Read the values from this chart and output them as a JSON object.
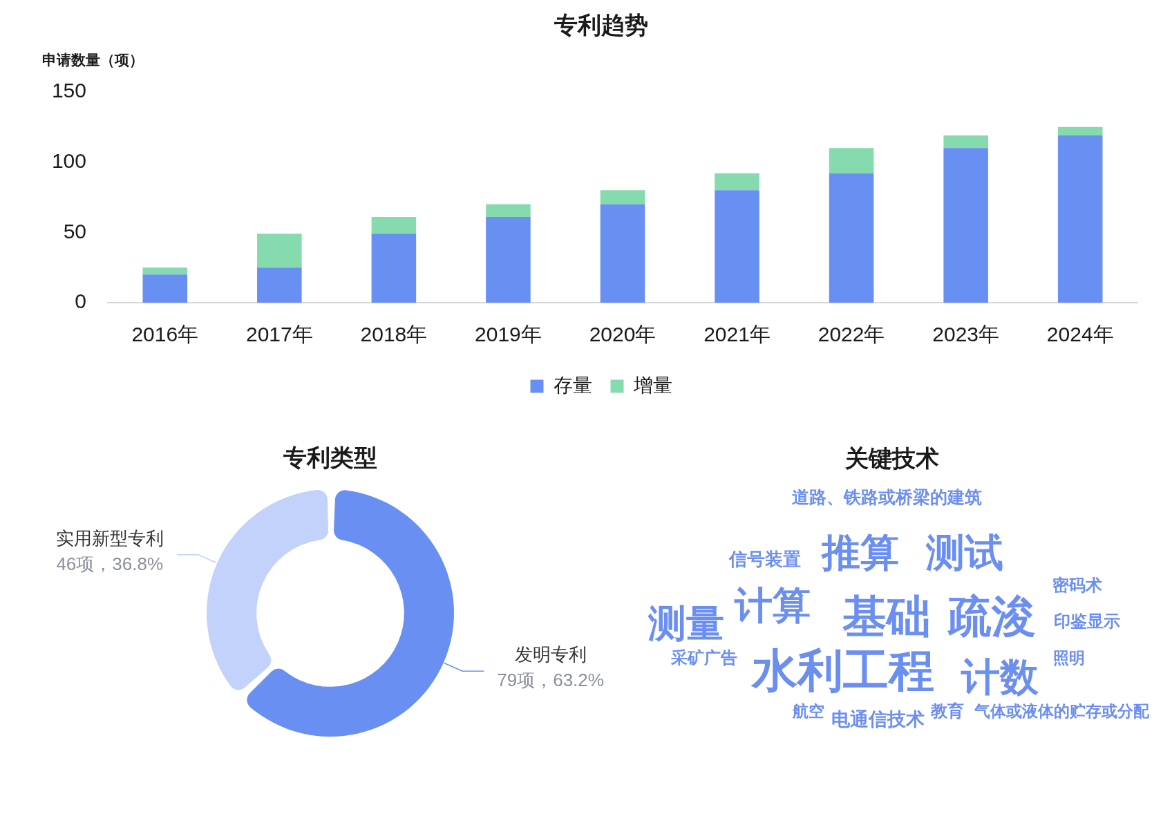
{
  "chart_data": [
    {
      "type": "bar",
      "title": "专利趋势",
      "ylabel": "申请数量（项）",
      "categories": [
        "2016年",
        "2017年",
        "2018年",
        "2019年",
        "2020年",
        "2021年",
        "2022年",
        "2023年",
        "2024年"
      ],
      "series": [
        {
          "name": "存量",
          "color": "#688ff2",
          "values": [
            20,
            25,
            49,
            61,
            70,
            80,
            92,
            110,
            119
          ]
        },
        {
          "name": "增量",
          "color": "#85dbad",
          "values": [
            5,
            24,
            12,
            9,
            10,
            12,
            18,
            9,
            6
          ]
        }
      ],
      "stacked": true,
      "ylim": [
        0,
        150
      ],
      "yticks": [
        0,
        50,
        100,
        150
      ],
      "legend": "bottom"
    },
    {
      "type": "donut",
      "title": "专利类型",
      "categories": [
        "发明专利",
        "实用新型专利"
      ],
      "values": [
        79,
        46
      ],
      "colors": [
        "#6a8ff2",
        "#c3d2fa"
      ],
      "value_labels": [
        "79项，63.2%",
        "46项，36.8%"
      ]
    },
    {
      "type": "other",
      "title": "关键技术",
      "color": "#6b8ef1",
      "annotations": [
        "道路、铁路或桥梁的建筑",
        "信号装置",
        "推算",
        "测试",
        "密码术",
        "测量",
        "计算",
        "基础",
        "疏浚",
        "印鉴显示",
        "采矿广告",
        "水利工程",
        "计数",
        "照明",
        "航空",
        "电通信技术",
        "教育",
        "气体或液体的贮存或分配"
      ]
    }
  ]
}
